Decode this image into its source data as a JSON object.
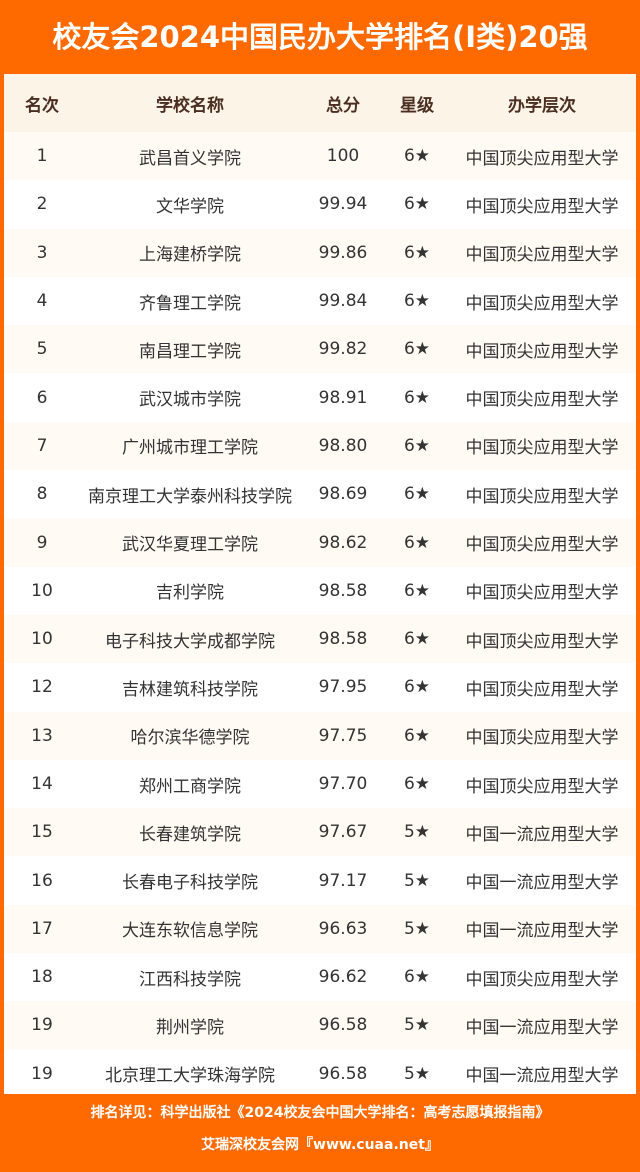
{
  "title": "校友会2024中国民办大学排名(I类)20强",
  "columns": [
    "名次",
    "学校名称",
    "总分",
    "星级",
    "办学层次"
  ],
  "rows": [
    [
      "1",
      "武昌首义学院",
      "100",
      "6★",
      "中国顶尖应用型大学"
    ],
    [
      "2",
      "文华学院",
      "99.94",
      "6★",
      "中国顶尖应用型大学"
    ],
    [
      "3",
      "上海建桥学院",
      "99.86",
      "6★",
      "中国顶尖应用型大学"
    ],
    [
      "4",
      "齐鲁理工学院",
      "99.84",
      "6★",
      "中国顶尖应用型大学"
    ],
    [
      "5",
      "南昌理工学院",
      "99.82",
      "6★",
      "中国顶尖应用型大学"
    ],
    [
      "6",
      "武汉城市学院",
      "98.91",
      "6★",
      "中国顶尖应用型大学"
    ],
    [
      "7",
      "广州城市理工学院",
      "98.80",
      "6★",
      "中国顶尖应用型大学"
    ],
    [
      "8",
      "南京理工大学泰州科技学院",
      "98.69",
      "6★",
      "中国顶尖应用型大学"
    ],
    [
      "9",
      "武汉华夏理工学院",
      "98.62",
      "6★",
      "中国顶尖应用型大学"
    ],
    [
      "10",
      "吉利学院",
      "98.58",
      "6★",
      "中国顶尖应用型大学"
    ],
    [
      "10",
      "电子科技大学成都学院",
      "98.58",
      "6★",
      "中国顶尖应用型大学"
    ],
    [
      "12",
      "吉林建筑科技学院",
      "97.95",
      "6★",
      "中国顶尖应用型大学"
    ],
    [
      "13",
      "哈尔滨华德学院",
      "97.75",
      "6★",
      "中国顶尖应用型大学"
    ],
    [
      "14",
      "郑州工商学院",
      "97.70",
      "6★",
      "中国顶尖应用型大学"
    ],
    [
      "15",
      "长春建筑学院",
      "97.67",
      "5★",
      "中国一流应用型大学"
    ],
    [
      "16",
      "长春电子科技学院",
      "97.17",
      "5★",
      "中国一流应用型大学"
    ],
    [
      "17",
      "大连东软信息学院",
      "96.63",
      "5★",
      "中国一流应用型大学"
    ],
    [
      "18",
      "江西科技学院",
      "96.62",
      "6★",
      "中国顶尖应用型大学"
    ],
    [
      "19",
      "荆州学院",
      "96.58",
      "5★",
      "中国一流应用型大学"
    ],
    [
      "19",
      "北京理工大学珠海学院",
      "96.58",
      "5★",
      "中国一流应用型大学"
    ]
  ],
  "footer": {
    "line1": "排名详见：科学出版社《2024校友会中国大学排名：高考志愿填报指南》",
    "line2": "艾瑞深校友会网『www.cuaa.net』"
  },
  "colors": {
    "brand": "#fe6a00",
    "header_bg": "#fdf4e8"
  }
}
